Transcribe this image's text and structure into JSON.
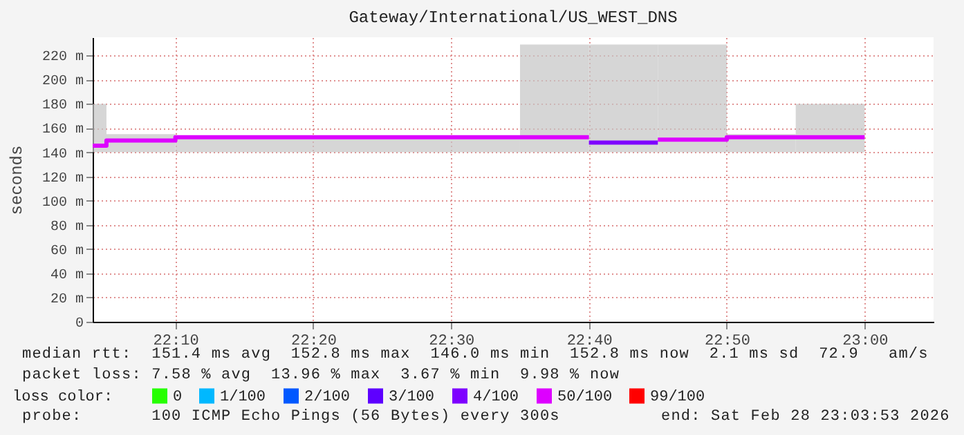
{
  "chart_data": {
    "type": "line",
    "title": "Gateway/International/US_WEST_DNS",
    "ylabel": "seconds",
    "legend_title": "loss color:",
    "legend": "bottom",
    "grid": true,
    "line_style": "solid",
    "marker": "none",
    "xlim": [
      "2026-02-28T22:04",
      "2026-02-28T23:05"
    ],
    "xticks": [
      {
        "value": "2026-02-28T22:10",
        "label": "22:10"
      },
      {
        "value": "2026-02-28T22:20",
        "label": "22:20"
      },
      {
        "value": "2026-02-28T22:30",
        "label": "22:30"
      },
      {
        "value": "2026-02-28T22:40",
        "label": "22:40"
      },
      {
        "value": "2026-02-28T22:50",
        "label": "22:50"
      },
      {
        "value": "2026-02-28T23:00",
        "label": "23:00"
      }
    ],
    "ylim": [
      0,
      235
    ],
    "yticks": [
      0,
      {
        "value": 20,
        "label": "20 m"
      },
      {
        "value": 40,
        "label": "40 m"
      },
      {
        "value": 60,
        "label": "60 m"
      },
      {
        "value": 80,
        "label": "80 m"
      },
      {
        "value": 100,
        "label": "100 m"
      },
      {
        "value": 120,
        "label": "120 m"
      },
      {
        "value": 140,
        "label": "140 m"
      },
      {
        "value": 160,
        "label": "160 m"
      },
      {
        "value": 180,
        "label": "180 m"
      },
      {
        "value": 200,
        "label": "200 m"
      },
      {
        "value": 220,
        "label": "220 m"
      }
    ],
    "series": [
      {
        "name": "0",
        "color": "#26ff00"
      },
      {
        "name": "1/100",
        "color": "#00b8ff"
      },
      {
        "name": "2/100",
        "color": "#0059ff"
      },
      {
        "name": "3/100",
        "color": "#5e00ff"
      },
      {
        "name": "4/100",
        "color": "#7e00ff",
        "x": [
          "2026-02-28T22:40",
          "2026-02-28T22:45"
        ],
        "values": [
          148,
          148
        ],
        "lower": [
          140,
          140
        ],
        "upper": [
          229,
          229
        ]
      },
      {
        "name": "50/100",
        "color": "#dd00ff",
        "x": [
          "2026-02-28T22:04",
          "2026-02-28T22:05",
          "2026-02-28T22:05",
          "2026-02-28T22:10",
          "2026-02-28T22:10",
          "2026-02-28T22:20",
          "2026-02-28T22:20",
          "2026-02-28T22:35",
          "2026-02-28T22:35",
          "2026-02-28T22:40",
          "2026-02-28T22:42",
          "2026-02-28T22:45",
          "2026-02-28T22:50",
          "2026-02-28T22:50",
          "2026-02-28T22:55",
          "2026-02-28T22:55",
          "2026-02-28T23:00"
        ],
        "values": [
          145.5,
          145.5,
          149.7,
          149.7,
          152.4,
          152.4,
          152.4,
          152.4,
          152.4,
          152.4,
          null,
          150.4,
          150.4,
          152.4,
          152.4,
          152.4,
          152.4
        ],
        "lower": [
          140,
          140,
          140,
          140,
          140,
          140,
          140,
          140,
          140,
          140,
          null,
          140,
          140,
          140,
          140,
          140,
          140
        ],
        "upper": [
          180,
          180,
          155,
          155,
          153,
          153,
          152,
          152,
          229,
          229,
          null,
          229,
          229,
          155,
          155,
          180,
          180
        ]
      },
      {
        "name": "99/100",
        "color": "#ff0000"
      }
    ],
    "annotations": [
      "median rtt:  151.4 ms avg  152.8 ms max  146.0 ms min  152.8 ms now  2.1 ms sd  72.9   am/s",
      "packet loss: 7.58 % avg  13.96 % max  3.67 % min  9.98 % now",
      "probe:       100 ICMP Echo Pings (56 Bytes) every 300s",
      "end: Sat Feb 28 23:03:53 2026"
    ]
  }
}
